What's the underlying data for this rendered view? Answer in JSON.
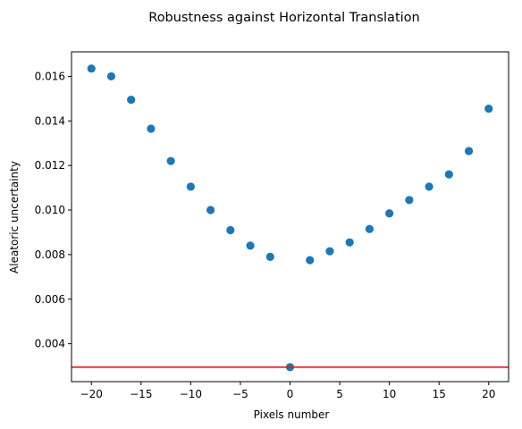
{
  "chart_data": {
    "type": "scatter",
    "title": "Robustness against Horizontal Translation",
    "xlabel": "Pixels number",
    "ylabel": "Aleatoric uncertainty",
    "xlim": [
      -22,
      22
    ],
    "ylim": [
      0.0023,
      0.0171
    ],
    "xticks": [
      -20,
      -15,
      -10,
      -5,
      0,
      5,
      10,
      15,
      20
    ],
    "xtick_labels": [
      "−20",
      "−15",
      "−10",
      "−5",
      "0",
      "5",
      "10",
      "15",
      "20"
    ],
    "yticks": [
      0.004,
      0.006,
      0.008,
      0.01,
      0.012,
      0.014,
      0.016
    ],
    "ytick_labels": [
      "0.004",
      "0.006",
      "0.008",
      "0.010",
      "0.012",
      "0.014",
      "0.016"
    ],
    "grid": false,
    "series": [
      {
        "color": "#1f77b4",
        "x": [
          -20,
          -18,
          -16,
          -14,
          -12,
          -10,
          -8,
          -6,
          -4,
          -2,
          0,
          2,
          4,
          6,
          8,
          10,
          12,
          14,
          16,
          18,
          20
        ],
        "y": [
          0.01635,
          0.016,
          0.01495,
          0.01365,
          0.0122,
          0.01105,
          0.01,
          0.0091,
          0.0084,
          0.0079,
          0.00295,
          0.00775,
          0.00815,
          0.00855,
          0.00915,
          0.00985,
          0.01045,
          0.01105,
          0.0116,
          0.01265,
          0.01455
        ]
      }
    ],
    "hlines": [
      {
        "y": 0.00295,
        "color": "#e41a1c"
      }
    ]
  }
}
